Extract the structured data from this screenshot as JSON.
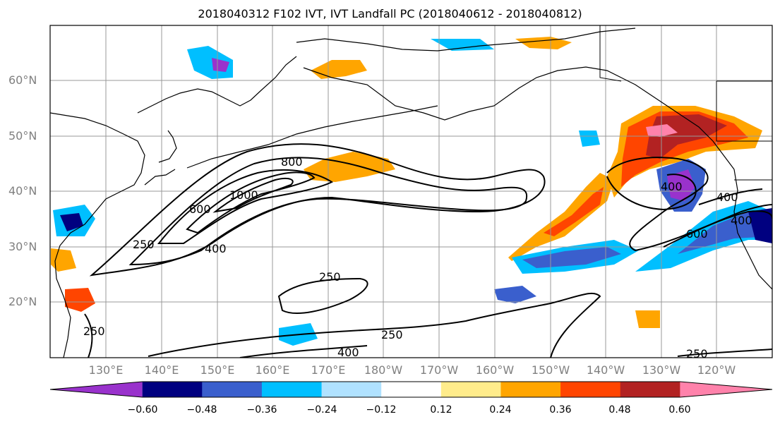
{
  "title": "2018040312 F102 IVT, IVT Landfall PC (2018040612 - 2018040812)",
  "lat_labels": [
    "60°N",
    "50°N",
    "40°N",
    "30°N",
    "20°N"
  ],
  "lon_labels": [
    "130°E",
    "140°E",
    "150°E",
    "160°E",
    "170°E",
    "180°W",
    "170°W",
    "160°W",
    "150°W",
    "140°W",
    "130°W",
    "120°W"
  ],
  "colorbar": {
    "ticks": [
      "−0.60",
      "−0.48",
      "−0.36",
      "−0.24",
      "−0.12",
      "0.12",
      "0.24",
      "0.36",
      "0.48",
      "0.60"
    ],
    "colors": [
      "#9932cc",
      "#000080",
      "#3a5fcd",
      "#00bfff",
      "#b0e2ff",
      "#ffffff",
      "#ffec8b",
      "#ffa500",
      "#ff4500",
      "#b22222",
      "#ff82ab"
    ]
  },
  "contour_labels": [
    "800",
    "1000",
    "600",
    "250",
    "400",
    "250",
    "250",
    "250",
    "400",
    "250",
    "400",
    "400",
    "600",
    "400"
  ]
}
